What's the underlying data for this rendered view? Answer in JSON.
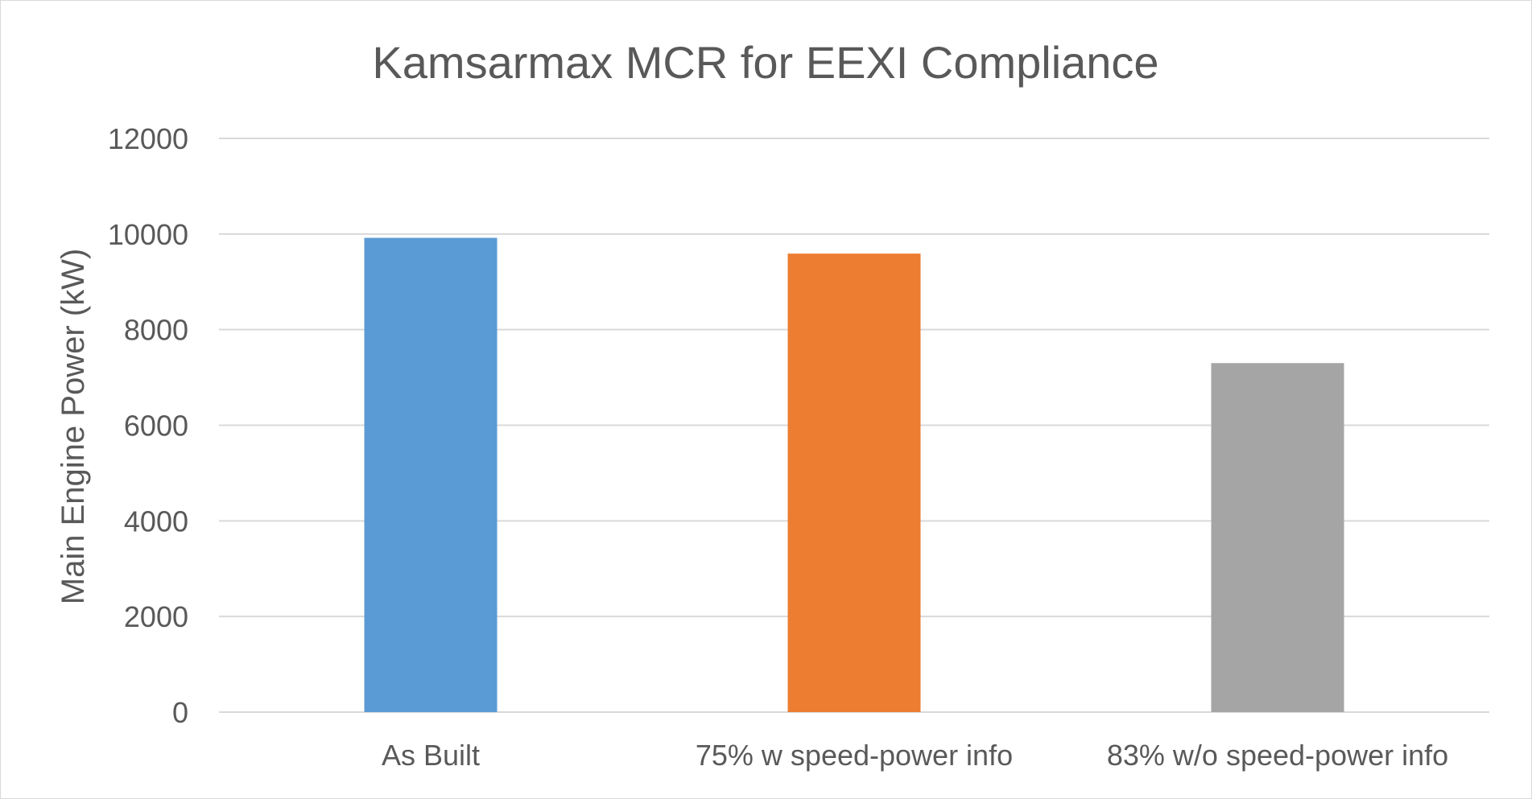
{
  "chart_data": {
    "type": "bar",
    "title": "Kamsarmax MCR for EEXI Compliance",
    "xlabel": "",
    "ylabel": "Main Engine Power (kW)",
    "categories": [
      "As Built",
      "75% w speed-power info",
      "83% w/o speed-power info"
    ],
    "values": [
      9920,
      9590,
      7300
    ],
    "bar_colors": [
      "#5b9bd5",
      "#ed7d31",
      "#a5a5a5"
    ],
    "ylim": [
      0,
      12000
    ],
    "yticks": [
      "0",
      "2000",
      "4000",
      "6000",
      "8000",
      "10000",
      "12000"
    ],
    "grid": true,
    "legend": "none"
  }
}
